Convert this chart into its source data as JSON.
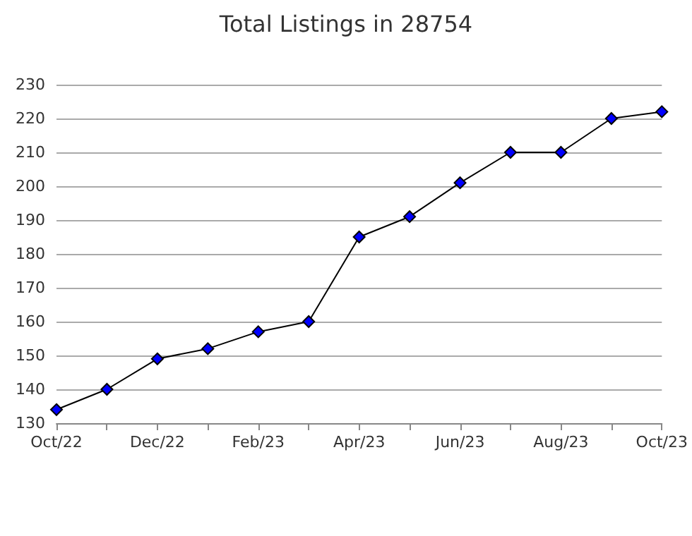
{
  "chart_data": {
    "type": "line",
    "title": "Total Listings in 28754",
    "categories": [
      "Oct/22",
      null,
      "Dec/22",
      null,
      "Feb/23",
      null,
      "Apr/23",
      null,
      "Jun/23",
      null,
      "Aug/23",
      null,
      "Oct/23"
    ],
    "series": [
      {
        "color": "#0000ff",
        "values": [
          134,
          140,
          149,
          152,
          157,
          160,
          185,
          191,
          201,
          210,
          210,
          220,
          222
        ]
      }
    ],
    "ylim": [
      130,
      230
    ],
    "yticks": [
      130,
      140,
      150,
      160,
      170,
      180,
      190,
      200,
      210,
      220,
      230
    ],
    "grid": "y",
    "marker": "diamond",
    "line_style": "solid"
  }
}
